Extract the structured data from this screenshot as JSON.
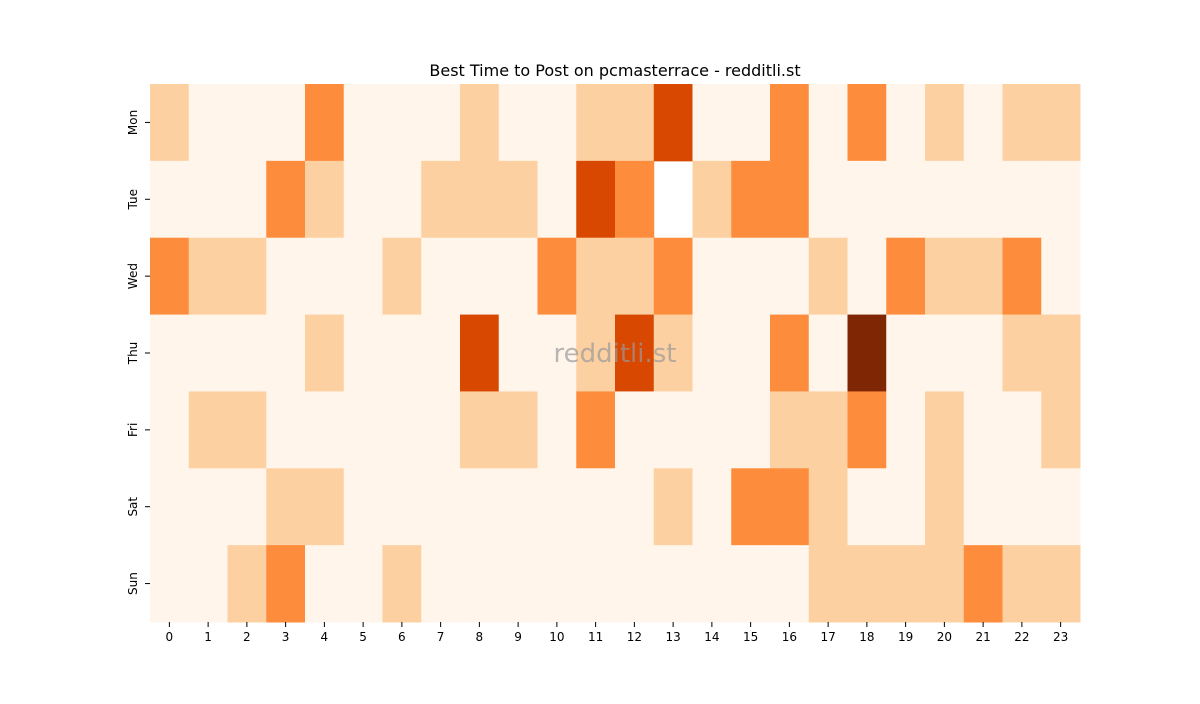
{
  "chart_data": {
    "type": "heatmap",
    "title": "Best Time to Post on pcmasterrace - redditli.st",
    "watermark": "redditli.st",
    "x": [
      0,
      1,
      2,
      3,
      4,
      5,
      6,
      7,
      8,
      9,
      10,
      11,
      12,
      13,
      14,
      15,
      16,
      17,
      18,
      19,
      20,
      21,
      22,
      23
    ],
    "y": [
      "Mon",
      "Tue",
      "Wed",
      "Thu",
      "Fri",
      "Sat",
      "Sun"
    ],
    "values": [
      [
        1,
        0,
        0,
        0,
        2,
        0,
        0,
        0,
        1,
        0,
        0,
        1,
        1,
        3,
        0,
        0,
        2,
        0,
        2,
        0,
        1,
        0,
        1,
        1
      ],
      [
        0,
        0,
        0,
        2,
        1,
        0,
        0,
        1,
        1,
        1,
        0,
        3,
        2,
        null,
        1,
        2,
        2,
        0,
        0,
        0,
        0,
        0,
        0,
        0
      ],
      [
        2,
        1,
        1,
        0,
        0,
        0,
        1,
        0,
        0,
        0,
        2,
        1,
        1,
        2,
        0,
        0,
        0,
        1,
        0,
        2,
        1,
        1,
        2,
        0
      ],
      [
        0,
        0,
        0,
        0,
        1,
        0,
        0,
        0,
        3,
        0,
        0,
        1,
        3,
        1,
        0,
        0,
        2,
        0,
        4,
        0,
        0,
        0,
        1,
        1
      ],
      [
        0,
        1,
        1,
        0,
        0,
        0,
        0,
        0,
        1,
        1,
        0,
        2,
        0,
        0,
        0,
        0,
        1,
        1,
        2,
        0,
        1,
        0,
        0,
        1
      ],
      [
        0,
        0,
        0,
        1,
        1,
        0,
        0,
        0,
        0,
        0,
        0,
        0,
        0,
        1,
        0,
        2,
        2,
        1,
        0,
        0,
        1,
        0,
        0,
        0
      ],
      [
        0,
        0,
        1,
        2,
        0,
        0,
        1,
        0,
        0,
        0,
        0,
        0,
        0,
        0,
        0,
        0,
        0,
        1,
        1,
        1,
        1,
        2,
        1,
        1
      ]
    ],
    "vlim": [
      0,
      4
    ],
    "colorscale": [
      "#fff5eb",
      "#fdd0a2",
      "#fd8d3c",
      "#d94801",
      "#7f2704"
    ]
  }
}
